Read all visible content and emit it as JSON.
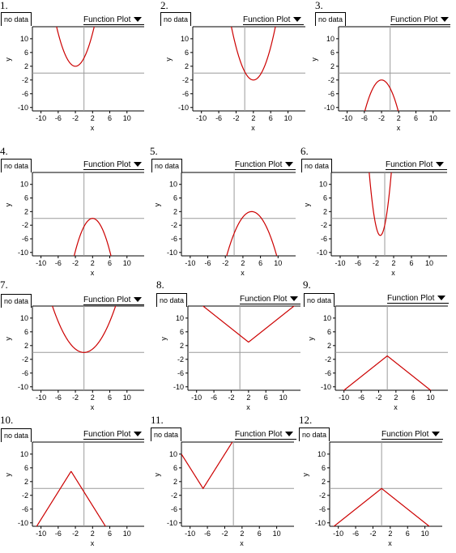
{
  "chart_data": [
    {
      "number": "1.",
      "type": "line",
      "nodata": "no data",
      "menu": "Function Plot",
      "xlabel": "x",
      "ylabel": "y",
      "xlim": [
        -12,
        14
      ],
      "ylim": [
        -11,
        13.5
      ],
      "xticks": [
        "-10",
        "-6",
        "-2",
        "2",
        "6",
        "10"
      ],
      "yticks": [
        "10",
        "6",
        "2",
        "-2",
        "-6",
        "-10"
      ],
      "grid": false,
      "series": [
        {
          "kind": "parabola",
          "h": -2,
          "k": 2,
          "a": 0.6
        }
      ],
      "color": "#cc0000"
    },
    {
      "number": "2.",
      "type": "line",
      "nodata": "no data",
      "menu": "Function Plot",
      "xlabel": "x",
      "ylabel": "y",
      "xlim": [
        -12,
        14
      ],
      "ylim": [
        -11,
        13.5
      ],
      "xticks": [
        "-10",
        "-6",
        "-2",
        "2",
        "6",
        "10"
      ],
      "yticks": [
        "10",
        "6",
        "2",
        "-2",
        "-6",
        "-10"
      ],
      "grid": false,
      "series": [
        {
          "kind": "parabola",
          "h": 2,
          "k": -2,
          "a": 0.6
        }
      ],
      "color": "#cc0000"
    },
    {
      "number": "3.",
      "type": "line",
      "nodata": "no data",
      "menu": "Function Plot",
      "xlabel": "x",
      "ylabel": "y",
      "xlim": [
        -12,
        14
      ],
      "ylim": [
        -11,
        13.5
      ],
      "xticks": [
        "-10",
        "-6",
        "-2",
        "2",
        "6",
        "10"
      ],
      "yticks": [
        "10",
        "6",
        "2",
        "-2",
        "-6",
        "-10"
      ],
      "grid": false,
      "series": [
        {
          "kind": "parabola",
          "h": -2,
          "k": -2,
          "a": -0.6
        }
      ],
      "color": "#cc0000"
    },
    {
      "number": "4.",
      "type": "line",
      "nodata": "no data",
      "menu": "Function Plot",
      "xlabel": "x",
      "ylabel": "y",
      "xlim": [
        -12,
        14
      ],
      "ylim": [
        -11,
        13.5
      ],
      "xticks": [
        "-10",
        "-6",
        "-2",
        "2",
        "6",
        "10"
      ],
      "yticks": [
        "10",
        "6",
        "2",
        "-2",
        "-6",
        "-10"
      ],
      "grid": false,
      "series": [
        {
          "kind": "parabola",
          "h": 2,
          "k": 0,
          "a": -0.6
        }
      ],
      "color": "#cc0000"
    },
    {
      "number": "5.",
      "type": "line",
      "nodata": "no data",
      "menu": "Function Plot",
      "xlabel": "x",
      "ylabel": "y",
      "xlim": [
        -12,
        14
      ],
      "ylim": [
        -11,
        13.5
      ],
      "xticks": [
        "-10",
        "-6",
        "-2",
        "2",
        "6",
        "10"
      ],
      "yticks": [
        "10",
        "6",
        "2",
        "-2",
        "-6",
        "-10"
      ],
      "grid": false,
      "series": [
        {
          "kind": "parabola",
          "h": 4,
          "k": 2,
          "a": -0.4
        }
      ],
      "color": "#cc0000"
    },
    {
      "number": "6.",
      "type": "line",
      "nodata": "no data",
      "menu": "Function Plot",
      "xlabel": "x",
      "ylabel": "y",
      "xlim": [
        -12,
        14
      ],
      "ylim": [
        -11,
        13.5
      ],
      "xticks": [
        "-10",
        "-6",
        "-2",
        "2",
        "6",
        "10"
      ],
      "yticks": [
        "10",
        "6",
        "2",
        "-2",
        "-6",
        "-10"
      ],
      "grid": false,
      "series": [
        {
          "kind": "parabola",
          "h": -1,
          "k": -5,
          "a": 3
        }
      ],
      "color": "#cc0000"
    },
    {
      "number": "7.",
      "type": "line",
      "nodata": "no data",
      "menu": "Function Plot",
      "xlabel": "x",
      "ylabel": "y",
      "xlim": [
        -12,
        14
      ],
      "ylim": [
        -11,
        13.5
      ],
      "xticks": [
        "-10",
        "-6",
        "-2",
        "2",
        "6",
        "10"
      ],
      "yticks": [
        "10",
        "6",
        "2",
        "-2",
        "-6",
        "-10"
      ],
      "grid": false,
      "series": [
        {
          "kind": "parabola",
          "h": 0,
          "k": 0,
          "a": 0.25
        }
      ],
      "color": "#cc0000"
    },
    {
      "number": "8.",
      "type": "line",
      "nodata": "no data",
      "menu": "Function Plot",
      "xlabel": "x",
      "ylabel": "y",
      "xlim": [
        -12,
        14
      ],
      "ylim": [
        -11,
        13.5
      ],
      "xticks": [
        "-10",
        "-6",
        "-2",
        "2",
        "6",
        "10"
      ],
      "yticks": [
        "10",
        "6",
        "2",
        "-2",
        "-6",
        "-10"
      ],
      "grid": false,
      "series": [
        {
          "kind": "abs",
          "h": 2,
          "k": 3,
          "a": 1
        }
      ],
      "color": "#cc0000"
    },
    {
      "number": "9.",
      "type": "line",
      "nodata": "no data",
      "menu": "Function Plot",
      "xlabel": "x",
      "ylabel": "y",
      "xlim": [
        -12,
        14
      ],
      "ylim": [
        -11,
        13.5
      ],
      "xticks": [
        "-10",
        "-6",
        "-2",
        "2",
        "6",
        "10"
      ],
      "yticks": [
        "10",
        "6",
        "2",
        "-2",
        "-6",
        "-10"
      ],
      "grid": false,
      "series": [
        {
          "kind": "abs",
          "h": 0,
          "k": -1,
          "a": -1
        }
      ],
      "color": "#cc0000"
    },
    {
      "number": "10.",
      "type": "line",
      "nodata": "no data",
      "menu": "Function Plot",
      "xlabel": "x",
      "ylabel": "y",
      "xlim": [
        -12,
        14
      ],
      "ylim": [
        -11,
        13.5
      ],
      "xticks": [
        "-10",
        "-6",
        "-2",
        "2",
        "6",
        "10"
      ],
      "yticks": [
        "10",
        "6",
        "2",
        "-2",
        "-6",
        "-10"
      ],
      "grid": false,
      "series": [
        {
          "kind": "abs",
          "h": -3,
          "k": 5,
          "a": -2
        }
      ],
      "color": "#cc0000"
    },
    {
      "number": "11.",
      "type": "line",
      "nodata": "no data",
      "menu": "Function Plot",
      "xlabel": "x",
      "ylabel": "y",
      "xlim": [
        -12,
        14
      ],
      "ylim": [
        -11,
        13.5
      ],
      "xticks": [
        "-10",
        "-6",
        "-2",
        "2",
        "6",
        "10"
      ],
      "yticks": [
        "10",
        "6",
        "2",
        "-2",
        "-6",
        "-10"
      ],
      "grid": false,
      "series": [
        {
          "kind": "abs",
          "h": -7,
          "k": 0,
          "a": 2
        }
      ],
      "color": "#cc0000"
    },
    {
      "number": "12.",
      "type": "line",
      "nodata": "no data",
      "menu": "Function Plot",
      "xlabel": "x",
      "ylabel": "y",
      "xlim": [
        -12,
        14
      ],
      "ylim": [
        -11,
        13.5
      ],
      "xticks": [
        "-10",
        "-6",
        "-2",
        "2",
        "6",
        "10"
      ],
      "yticks": [
        "10",
        "6",
        "2",
        "-2",
        "-6",
        "-10"
      ],
      "grid": false,
      "series": [
        {
          "kind": "abs",
          "h": 0,
          "k": 0,
          "a": -1
        }
      ],
      "color": "#cc0000"
    }
  ]
}
